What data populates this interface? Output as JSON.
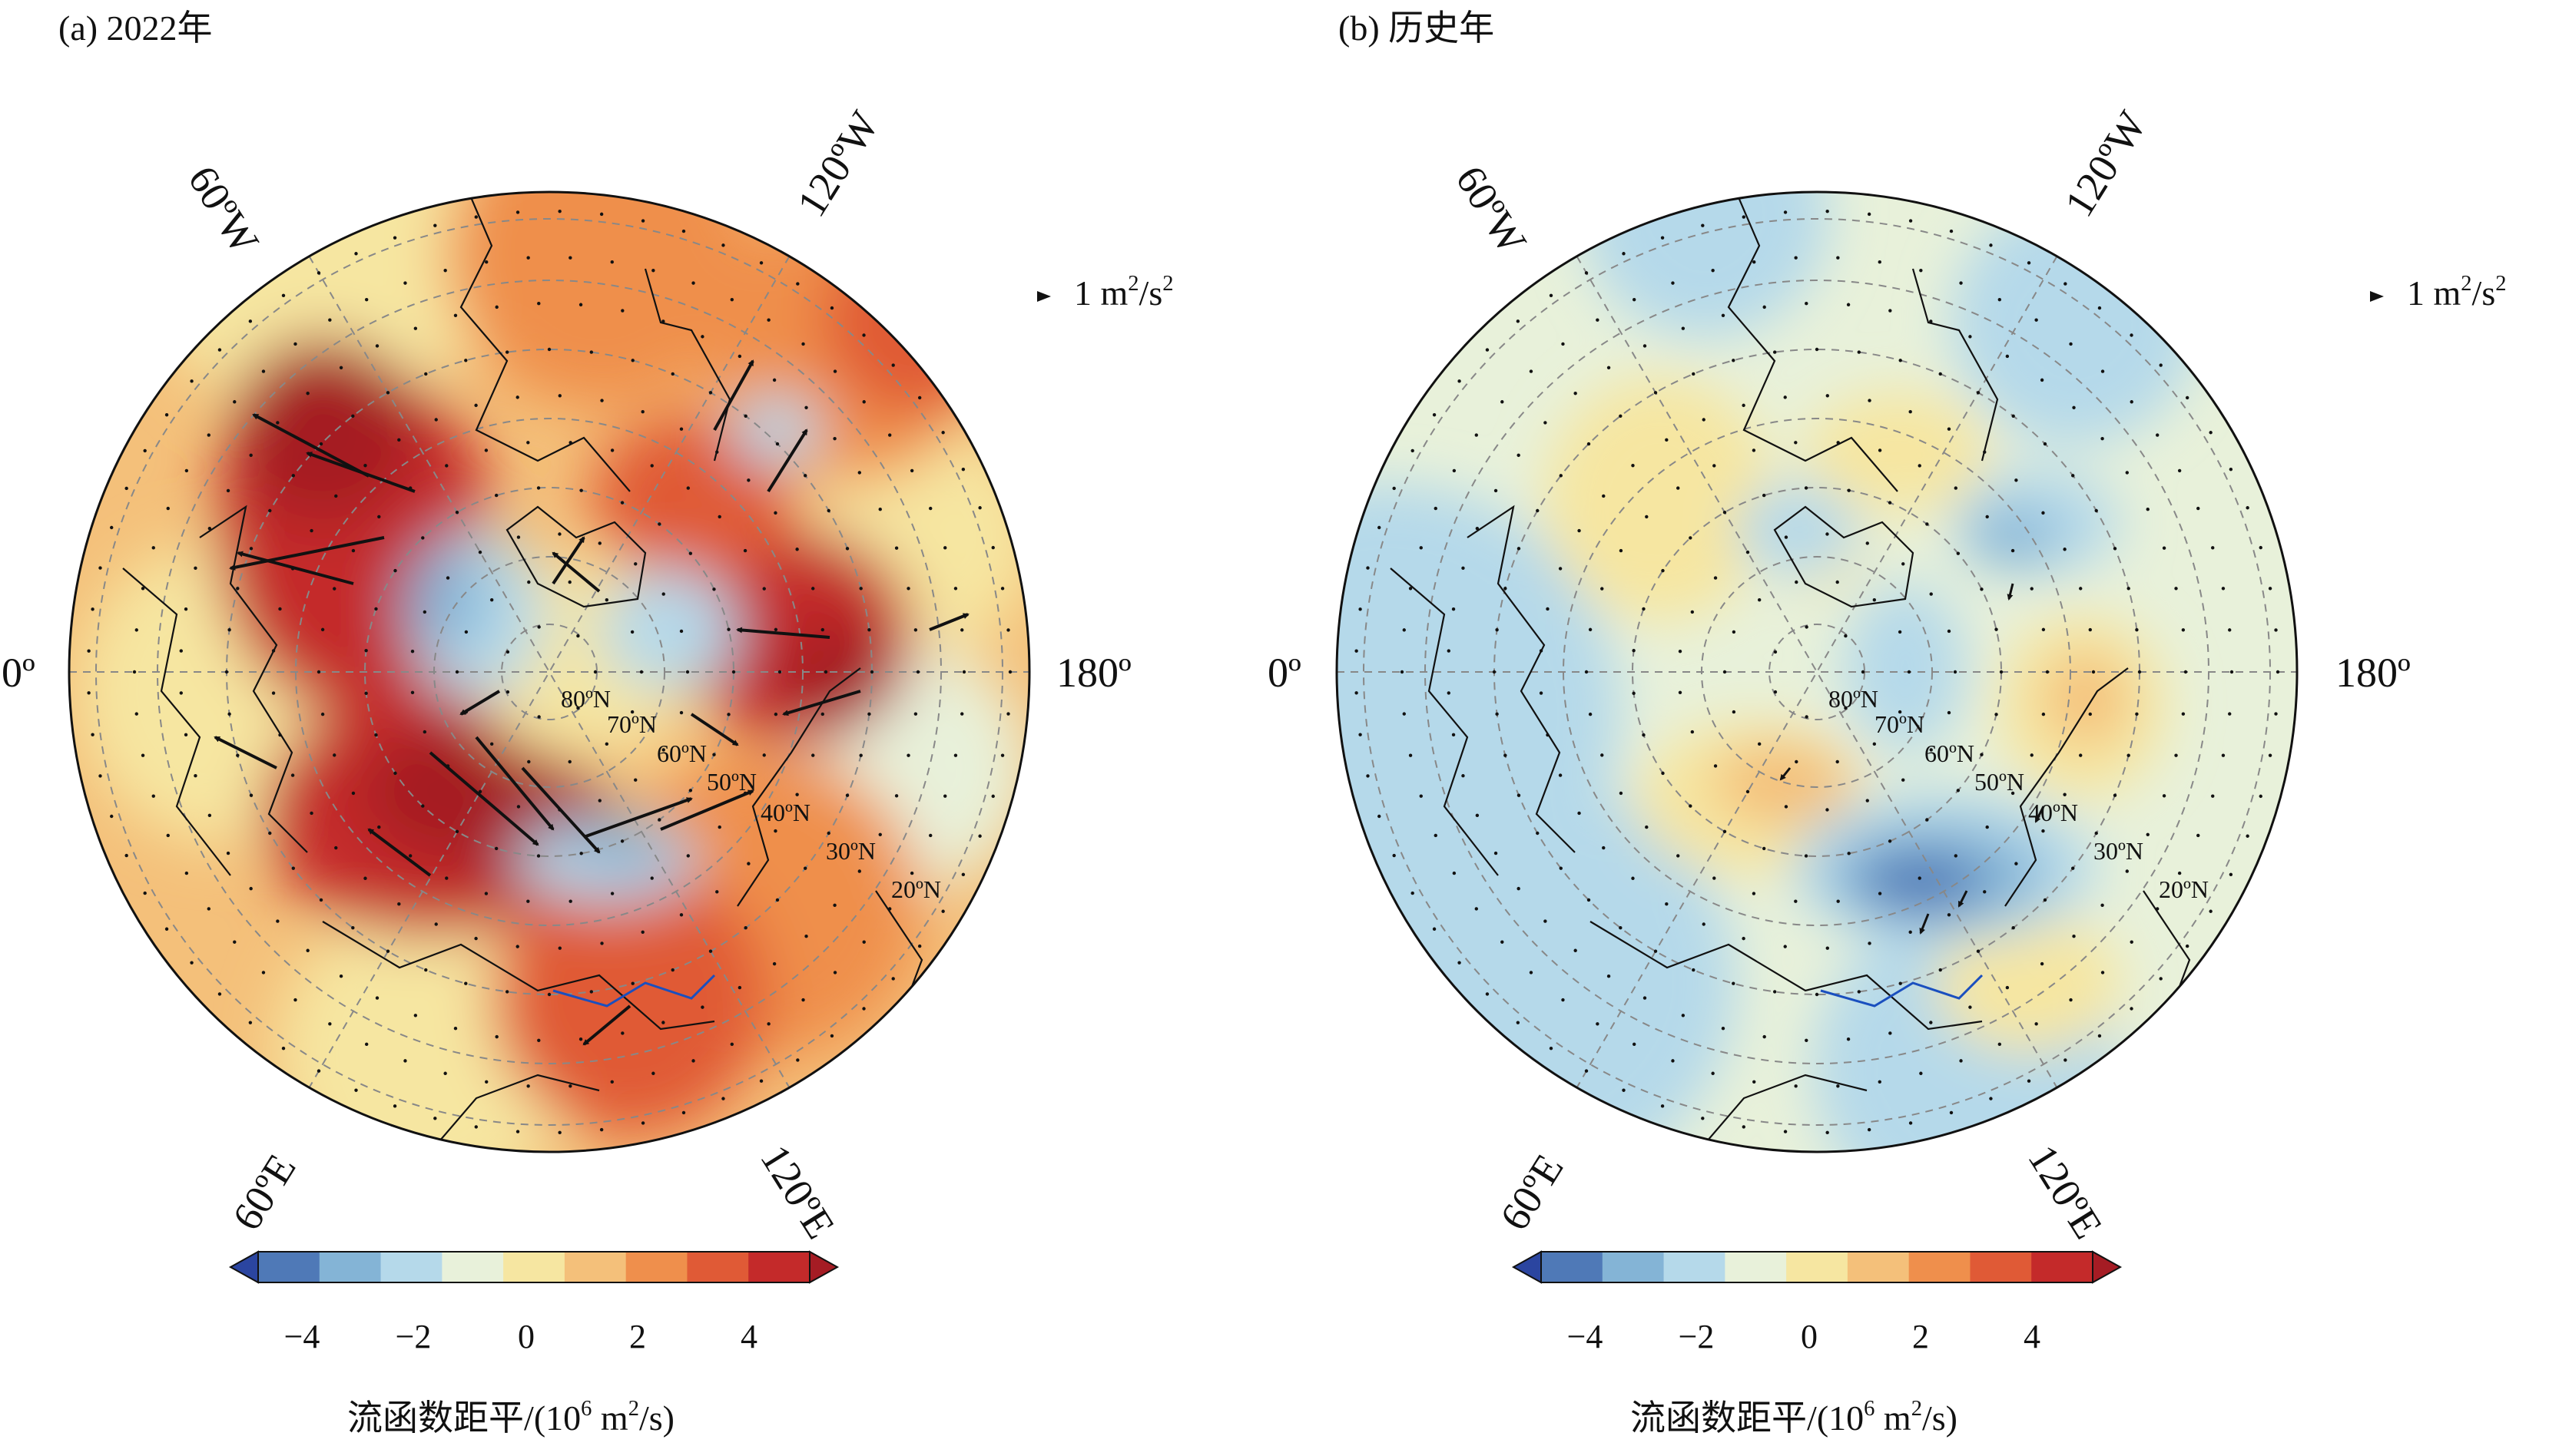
{
  "colorbar": {
    "ticks": [
      "−4",
      "−2",
      "0",
      "2",
      "4"
    ],
    "levels": [
      -4,
      -2,
      0,
      2,
      4
    ],
    "title_text": "流函数距平/(10",
    "title_sup": "6",
    "title_rest": " m",
    "title_sup2": "2",
    "title_end": "/s)",
    "colors": [
      "#2b45a0",
      "#4f79b7",
      "#84b4d6",
      "#b5d9ea",
      "#e8f1da",
      "#f6e6a1",
      "#f4c07a",
      "#ef8f4c",
      "#e05a36",
      "#c42a2a",
      "#a51c24"
    ]
  },
  "reference_vector": {
    "value_text": "1 m",
    "value_sup": "2",
    "value_mid": "/s",
    "value_sup2": "2"
  },
  "longitude_labels": {
    "w60": "60ºW",
    "w120": "120ºW",
    "zero": "0º",
    "e180": "180º",
    "e60": "60ºE",
    "e120": "120ºE"
  },
  "latitude_labels": [
    "80ºN",
    "70ºN",
    "60ºN",
    "50ºN",
    "40ºN",
    "30ºN",
    "20ºN"
  ],
  "panels": [
    {
      "id": "a",
      "title": "(a) 2022年",
      "field_style": "strong-positive",
      "max_anomaly": 5,
      "min_anomaly": -3
    },
    {
      "id": "b",
      "title": "(b) 历史年",
      "field_style": "weak",
      "max_anomaly": 2.5,
      "min_anomaly": -3.5
    }
  ]
}
